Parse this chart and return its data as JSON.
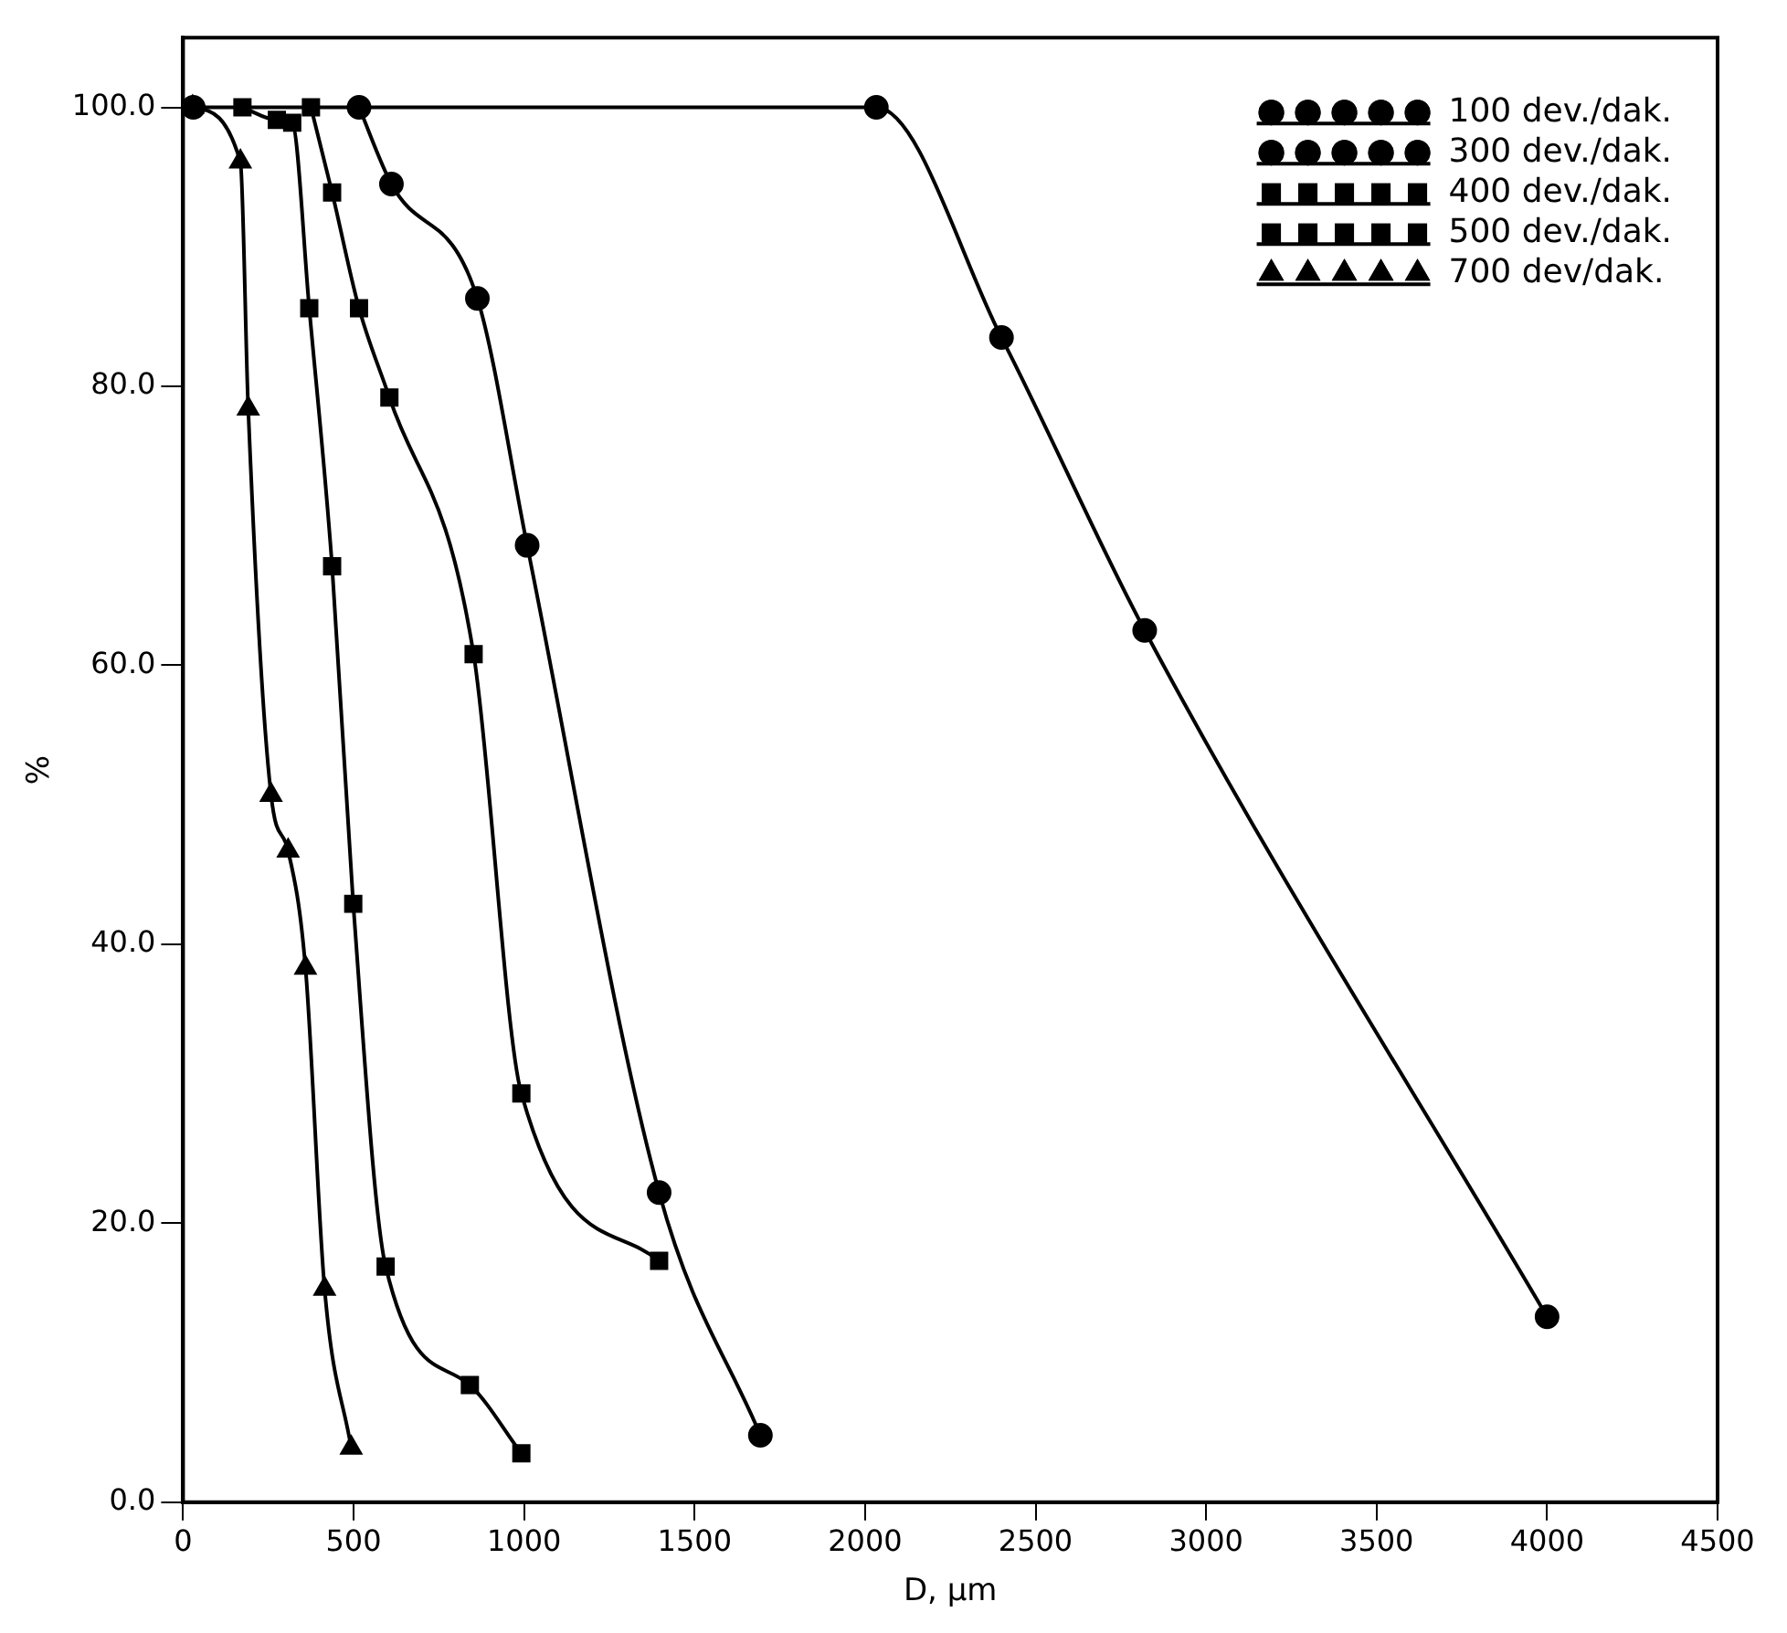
{
  "chart_data": {
    "type": "line",
    "xlabel": "D, µm",
    "ylabel": "%",
    "xlim": [
      0,
      4500
    ],
    "ylim": [
      0,
      105
    ],
    "xticks": [
      0,
      500,
      1000,
      1500,
      2000,
      2500,
      3000,
      3500,
      4000,
      4500
    ],
    "yticks": [
      {
        "value": 0,
        "label": "0.0"
      },
      {
        "value": 20,
        "label": "20.0"
      },
      {
        "value": 40,
        "label": "40.0"
      },
      {
        "value": 60,
        "label": "60.0"
      },
      {
        "value": 80,
        "label": "80.0"
      },
      {
        "value": 100,
        "label": "100.0"
      }
    ],
    "grid": false,
    "legend": "top right",
    "series": [
      {
        "name": "100 dev./dak.",
        "color": "#000000",
        "marker": "circle",
        "x": [
          30,
          2033,
          2400,
          2820,
          4000
        ],
        "values": [
          100,
          100,
          83.5,
          62.5,
          13.3
        ]
      },
      {
        "name": "300 dev./dak.",
        "color": "#000000",
        "marker": "circle",
        "x": [
          516,
          611,
          863,
          1009,
          1396,
          1693
        ],
        "values": [
          100,
          94.5,
          86.3,
          68.6,
          22.2,
          4.8
        ]
      },
      {
        "name": "400 dev./dak.",
        "color": "#000000",
        "marker": "square",
        "x": [
          375,
          437,
          516,
          605,
          852,
          992,
          1396
        ],
        "values": [
          100,
          93.9,
          85.6,
          79.2,
          60.8,
          29.3,
          17.3
        ]
      },
      {
        "name": "500 dev./dak.",
        "color": "#000000",
        "marker": "square",
        "x": [
          174,
          275,
          320,
          370,
          437,
          499,
          594,
          841,
          992
        ],
        "values": [
          100,
          99.1,
          98.9,
          85.6,
          67.1,
          42.9,
          16.9,
          8.4,
          3.5
        ]
      },
      {
        "name": "700 dev/dak.",
        "color": "#000000",
        "marker": "triangle",
        "x": [
          28,
          168,
          191,
          258,
          308,
          359,
          415,
          493
        ],
        "values": [
          100,
          96.1,
          78.4,
          50.7,
          46.7,
          38.3,
          15.3,
          3.9
        ]
      }
    ]
  }
}
